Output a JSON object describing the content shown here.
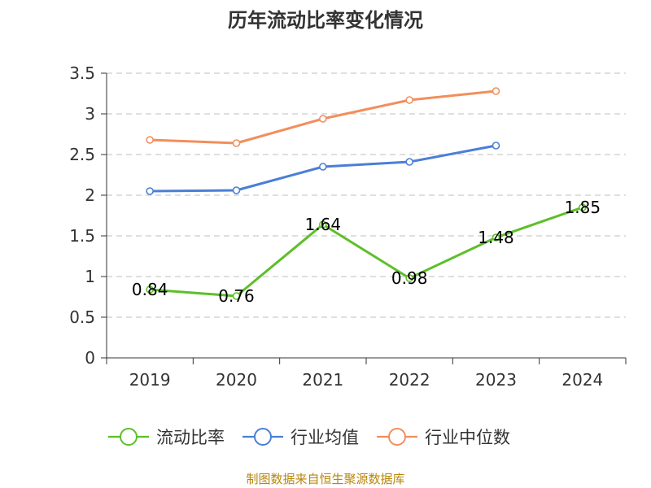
{
  "colors": {
    "background": "#ffffff",
    "grid": "#cccccc",
    "axis": "#333333",
    "source": "#b8860b"
  },
  "chart_data": {
    "type": "line",
    "title": "历年流动比率变化情况",
    "categories": [
      "2019",
      "2020",
      "2021",
      "2022",
      "2023",
      "2024"
    ],
    "ylim": [
      0,
      3.5
    ],
    "yticks": [
      0,
      0.5,
      1,
      1.5,
      2,
      2.5,
      3,
      3.5
    ],
    "ytick_labels": [
      "0",
      "0.5",
      "1",
      "1.5",
      "2",
      "2.5",
      "3",
      "3.5"
    ],
    "grid": true,
    "legend_position": "bottom",
    "series": [
      {
        "name": "流动比率",
        "color": "#5cbf2a",
        "values": [
          0.84,
          0.76,
          1.64,
          0.98,
          1.48,
          1.85
        ],
        "labels": [
          "0.84",
          "0.76",
          "1.64",
          "0.98",
          "1.48",
          "1.85"
        ]
      },
      {
        "name": "行业均值",
        "color": "#4a7fd6",
        "values": [
          2.05,
          2.06,
          2.35,
          2.41,
          2.61,
          null
        ]
      },
      {
        "name": "行业中位数",
        "color": "#f28e5b",
        "values": [
          2.68,
          2.64,
          2.94,
          3.17,
          3.28,
          null
        ]
      }
    ],
    "source": "制图数据来自恒生聚源数据库"
  }
}
